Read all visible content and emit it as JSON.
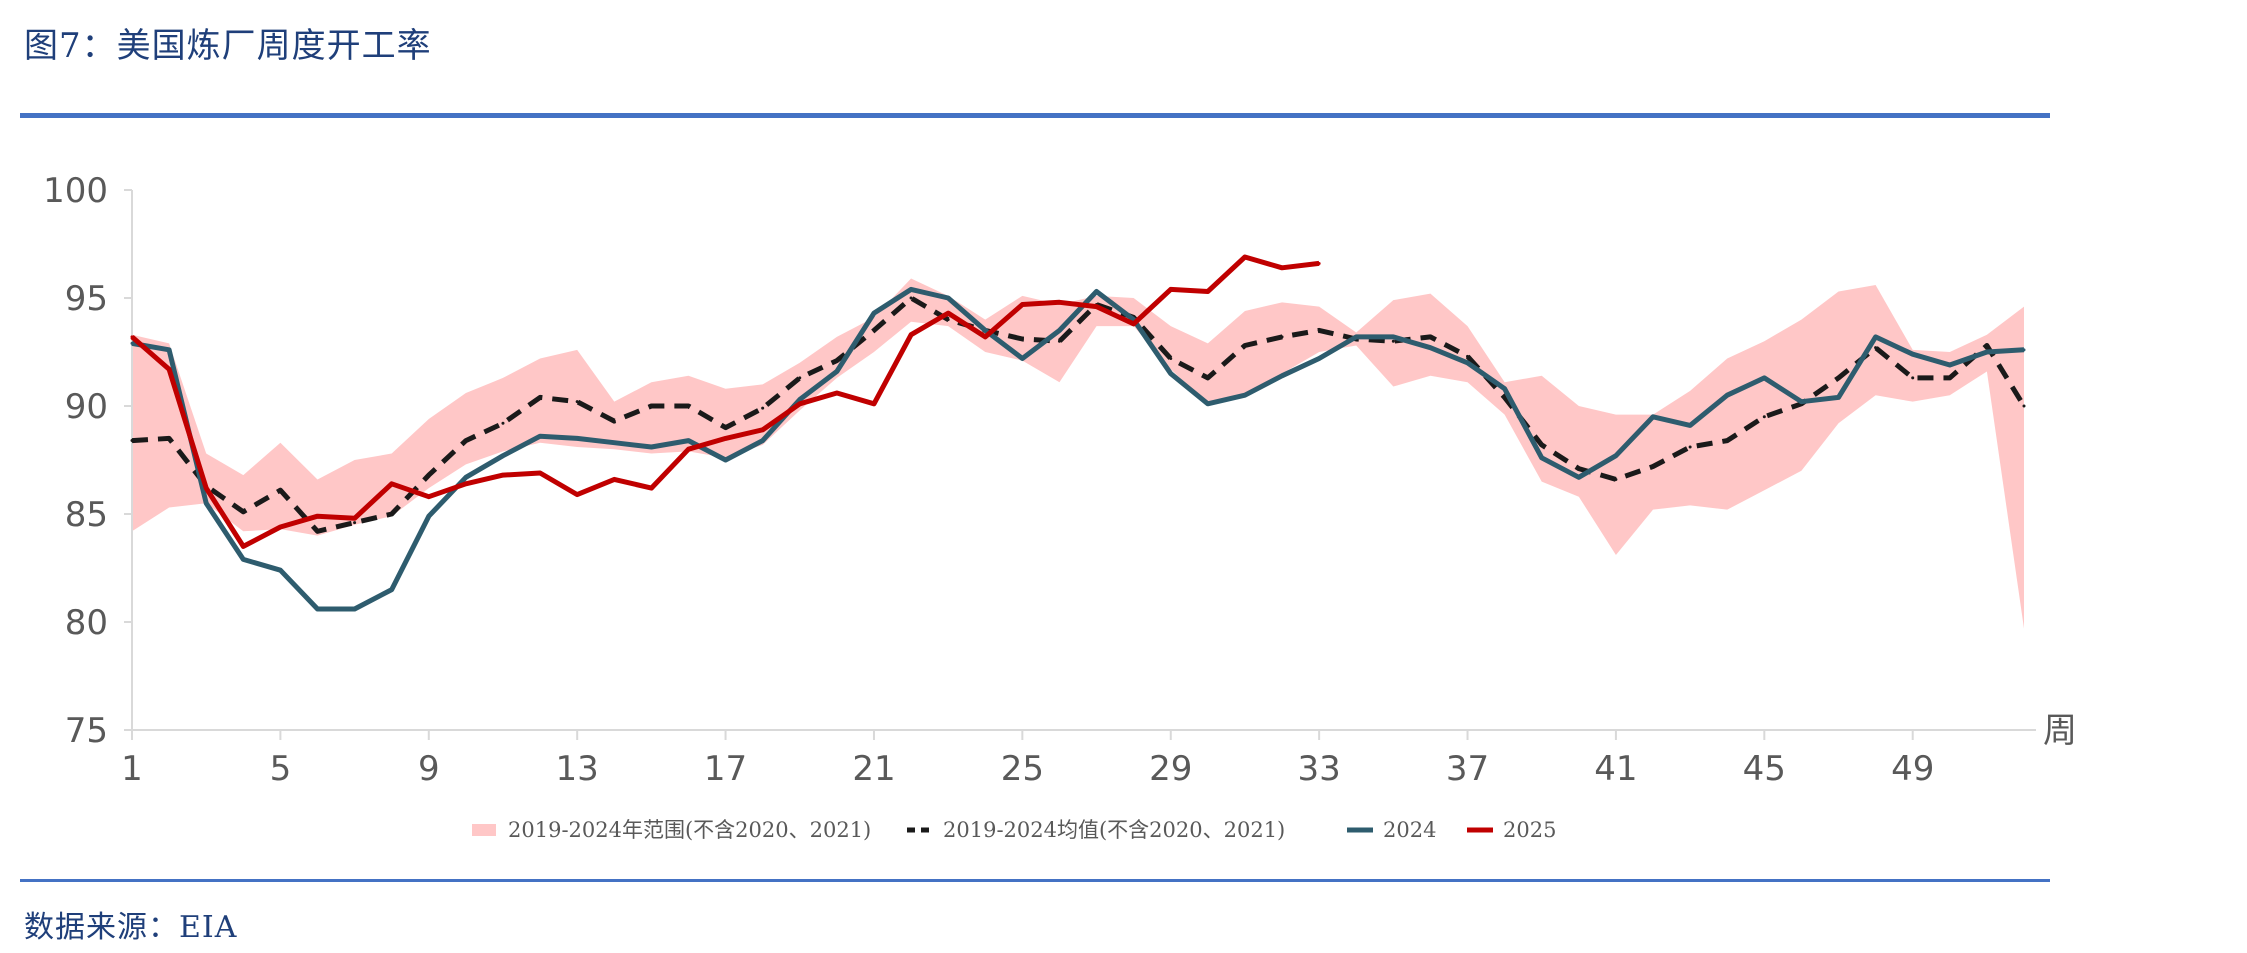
{
  "figure_title": "图7：美国炼厂周度开工率",
  "source": "数据来源：EIA",
  "chart_data": {
    "type": "line",
    "x_unit_label": "周",
    "xlim": [
      1,
      52
    ],
    "ylim": [
      75,
      100
    ],
    "x_ticks": [
      1,
      5,
      9,
      13,
      17,
      21,
      25,
      29,
      33,
      37,
      41,
      45,
      49
    ],
    "y_ticks": [
      75,
      80,
      85,
      90,
      95,
      100
    ],
    "grid": false,
    "legend_position": "bottom",
    "range_band": {
      "name": "2019-2024年范围(不含2020、2021)",
      "color": "#ffc7c7",
      "x": [
        1,
        2,
        3,
        4,
        5,
        6,
        7,
        8,
        9,
        10,
        11,
        12,
        13,
        14,
        15,
        16,
        17,
        18,
        19,
        20,
        21,
        22,
        23,
        24,
        25,
        26,
        27,
        28,
        29,
        30,
        31,
        32,
        33,
        34,
        35,
        36,
        37,
        38,
        39,
        40,
        41,
        42,
        43,
        44,
        45,
        46,
        47,
        48,
        49,
        50,
        51,
        52
      ],
      "upper": [
        93.3,
        92.9,
        87.8,
        86.8,
        88.3,
        86.6,
        87.5,
        87.8,
        89.4,
        90.6,
        91.3,
        92.2,
        92.6,
        90.2,
        91.1,
        91.4,
        90.8,
        91.0,
        92.0,
        93.2,
        94.1,
        95.9,
        95.1,
        94.0,
        95.1,
        94.7,
        95.1,
        95.0,
        93.7,
        92.9,
        94.4,
        94.8,
        94.6,
        93.4,
        94.9,
        95.2,
        93.7,
        91.1,
        91.4,
        90.0,
        89.6,
        89.6,
        90.7,
        92.2,
        93.0,
        94.0,
        95.3,
        95.6,
        92.6,
        92.5,
        93.3,
        94.6
      ],
      "lower": [
        84.2,
        85.3,
        85.5,
        84.2,
        84.3,
        84.0,
        84.5,
        84.9,
        86.2,
        87.3,
        87.9,
        88.3,
        88.1,
        88.0,
        87.8,
        87.9,
        87.6,
        88.2,
        89.8,
        91.3,
        92.5,
        93.9,
        93.7,
        92.5,
        92.1,
        91.1,
        93.7,
        93.7,
        91.7,
        90.1,
        90.6,
        91.5,
        92.5,
        92.8,
        90.9,
        91.4,
        91.1,
        89.6,
        86.5,
        85.8,
        83.1,
        85.2,
        85.4,
        85.2,
        86.1,
        87.0,
        89.2,
        90.5,
        90.2,
        90.5,
        91.6,
        79.7
      ]
    },
    "series": [
      {
        "name": "2019-2024均值(不含2020、2021)",
        "color": "#1a1a1a",
        "style": "dashed",
        "x": [
          1,
          2,
          3,
          4,
          5,
          6,
          7,
          8,
          9,
          10,
          11,
          12,
          13,
          14,
          15,
          16,
          17,
          18,
          19,
          20,
          21,
          22,
          23,
          24,
          25,
          26,
          27,
          28,
          29,
          30,
          31,
          32,
          33,
          34,
          35,
          36,
          37,
          38,
          39,
          40,
          41,
          42,
          43,
          44,
          45,
          46,
          47,
          48,
          49,
          50,
          51,
          52
        ],
        "y": [
          88.4,
          88.5,
          86.3,
          85.1,
          86.1,
          84.2,
          84.6,
          85.0,
          86.8,
          88.4,
          89.2,
          90.4,
          90.2,
          89.3,
          90.0,
          90.0,
          89.0,
          89.9,
          91.3,
          92.1,
          93.5,
          95.0,
          94.0,
          93.5,
          93.1,
          93.0,
          94.7,
          94.1,
          92.2,
          91.3,
          92.8,
          93.2,
          93.5,
          93.1,
          93.0,
          93.2,
          92.3,
          90.4,
          88.2,
          87.1,
          86.6,
          87.2,
          88.1,
          88.4,
          89.5,
          90.1,
          91.3,
          92.7,
          91.3,
          91.3,
          92.8,
          90.0
        ]
      },
      {
        "name": "2024",
        "color": "#2e5c6e",
        "style": "solid",
        "x": [
          1,
          2,
          3,
          4,
          5,
          6,
          7,
          8,
          9,
          10,
          11,
          12,
          13,
          14,
          15,
          16,
          17,
          18,
          19,
          20,
          21,
          22,
          23,
          24,
          25,
          26,
          27,
          28,
          29,
          30,
          31,
          32,
          33,
          34,
          35,
          36,
          37,
          38,
          39,
          40,
          41,
          42,
          43,
          44,
          45,
          46,
          47,
          48,
          49,
          50,
          51,
          52
        ],
        "y": [
          92.9,
          92.6,
          85.5,
          82.9,
          82.4,
          80.6,
          80.6,
          81.5,
          84.9,
          86.7,
          87.7,
          88.6,
          88.5,
          88.3,
          88.1,
          88.4,
          87.5,
          88.4,
          90.3,
          91.6,
          94.3,
          95.4,
          95.0,
          93.5,
          92.2,
          93.5,
          95.3,
          94.0,
          91.5,
          90.1,
          90.5,
          91.4,
          92.2,
          93.2,
          93.2,
          92.7,
          92.0,
          90.8,
          87.6,
          86.7,
          87.7,
          89.5,
          89.1,
          90.5,
          91.3,
          90.2,
          90.4,
          93.2,
          92.4,
          91.9,
          92.5,
          92.6
        ]
      },
      {
        "name": "2025",
        "color": "#c00000",
        "style": "solid",
        "x": [
          1,
          2,
          3,
          4,
          5,
          6,
          7,
          8,
          9,
          10,
          11,
          12,
          13,
          14,
          15,
          16,
          17,
          18,
          19,
          20,
          21,
          22,
          23,
          24,
          25,
          26,
          27,
          28,
          29,
          30,
          31,
          32,
          33
        ],
        "y": [
          93.2,
          91.7,
          86.2,
          83.5,
          84.4,
          84.9,
          84.8,
          86.4,
          85.8,
          86.4,
          86.8,
          86.9,
          85.9,
          86.6,
          86.2,
          88.0,
          88.5,
          88.9,
          90.1,
          90.6,
          90.1,
          93.3,
          94.3,
          93.2,
          94.7,
          94.8,
          94.6,
          93.8,
          95.4,
          95.3,
          96.9,
          96.4,
          96.6
        ]
      }
    ]
  }
}
